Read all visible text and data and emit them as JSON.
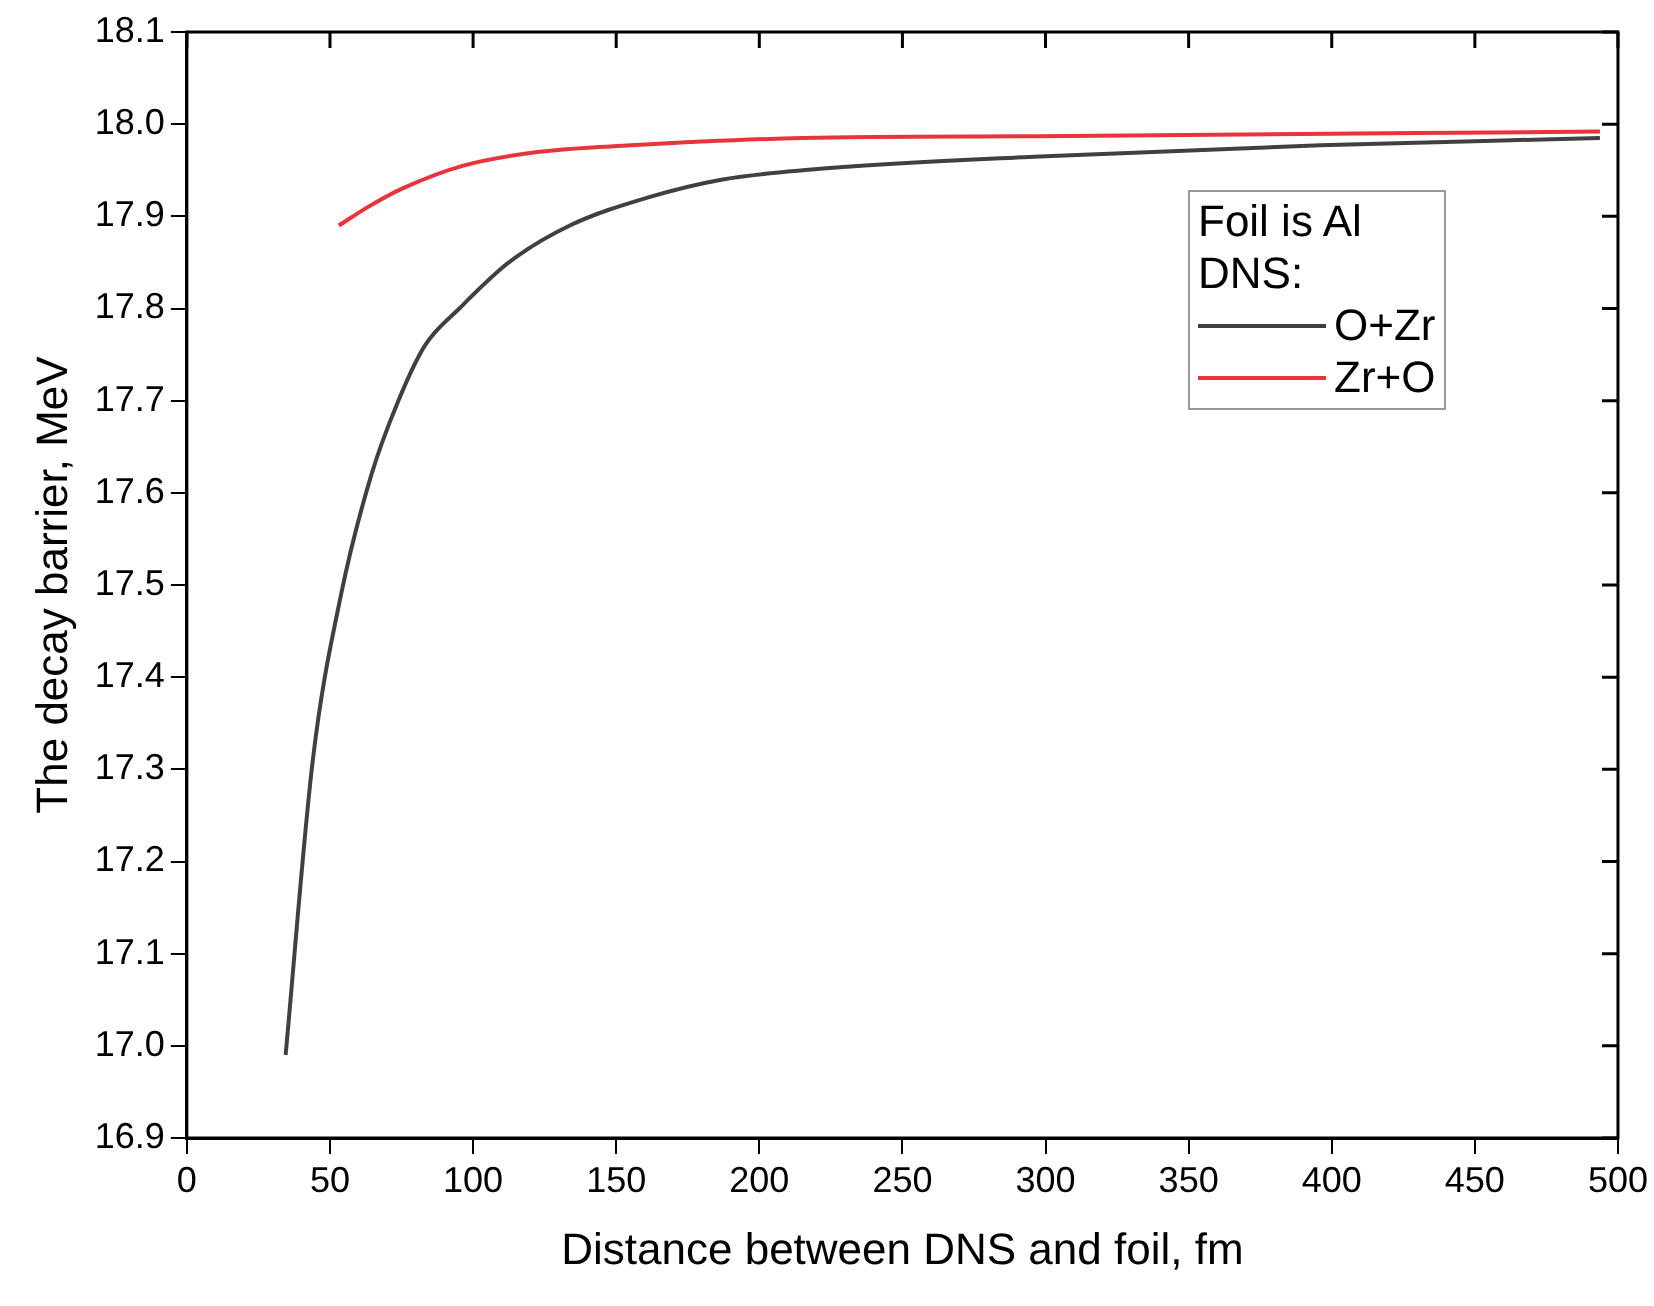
{
  "chart_data": {
    "type": "line",
    "xlabel": "Distance between DNS and foil, fm",
    "ylabel": "The decay barrier, MeV",
    "legend_title": "Foil is Al\nDNS:",
    "legend": "top right",
    "xlim": [
      0,
      500
    ],
    "xticks": [
      0,
      50,
      100,
      150,
      200,
      250,
      300,
      350,
      400,
      450,
      500
    ],
    "ylim": [
      16.9,
      18.1
    ],
    "yticks": [
      16.9,
      {
        "value": 17,
        "label": "17.0"
      },
      17.1,
      17.2,
      17.3,
      17.4,
      17.5,
      17.6,
      17.7,
      17.8,
      17.9,
      {
        "value": 18,
        "label": "18.0"
      },
      18.1
    ],
    "grid": false,
    "series": [
      {
        "name": "O+Zr",
        "color": "#404040",
        "x": [
          34.5,
          44,
          53.9,
          64.5,
          73.9,
          83.2,
          95.2,
          112.5,
          133.8,
          160.6,
          187.2,
          215.2,
          298,
          396,
          493.7
        ],
        "values": [
          16.99,
          17.31,
          17.49,
          17.62,
          17.7,
          17.76,
          17.8,
          17.85,
          17.89,
          17.92,
          17.94,
          17.95,
          17.965,
          17.977,
          17.985
        ]
      },
      {
        "name": "Zr+O",
        "color": "#e8343c",
        "x": [
          53.1,
          63.2,
          75.2,
          96.6,
          123.2,
          155.2,
          215.2,
          298,
          493.7
        ],
        "values": [
          17.89,
          17.91,
          17.93,
          17.955,
          17.97,
          17.977,
          17.985,
          17.987,
          17.992
        ]
      }
    ]
  }
}
